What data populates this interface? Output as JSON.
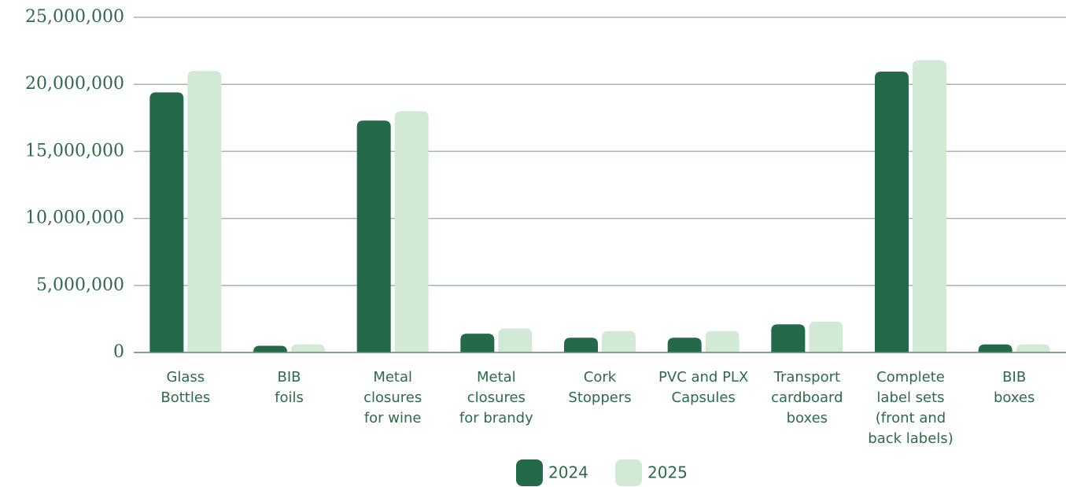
{
  "chart_data": {
    "type": "bar",
    "categories": [
      [
        "Glass",
        "Bottles"
      ],
      [
        "BIB",
        "foils"
      ],
      [
        "Metal",
        "closures",
        "for wine"
      ],
      [
        "Metal",
        "closures",
        "for brandy"
      ],
      [
        "Cork",
        "Stoppers"
      ],
      [
        "PVC and PLX",
        "Capsules"
      ],
      [
        "Transport",
        "cardboard",
        "boxes"
      ],
      [
        "Complete",
        "label sets",
        "(front and",
        "back labels)"
      ],
      [
        "BIB",
        "boxes"
      ]
    ],
    "series": [
      {
        "name": "2024",
        "color": "#23694a",
        "values": [
          19400000,
          500000,
          17300000,
          1400000,
          1100000,
          1100000,
          2100000,
          20950000,
          600000
        ]
      },
      {
        "name": "2025",
        "color": "#d2e9d5",
        "values": [
          21000000,
          600000,
          18000000,
          1800000,
          1600000,
          1600000,
          2300000,
          21800000,
          600000
        ]
      }
    ],
    "ylim": [
      0,
      25000000
    ],
    "yticks": [
      0,
      {
        "value": 5000000,
        "label": "5,000,000"
      },
      {
        "value": 10000000,
        "label": "10,000,000"
      },
      {
        "value": 15000000,
        "label": "15,000,000"
      },
      {
        "value": 20000000,
        "label": "20,000,000"
      },
      {
        "value": 25000000,
        "label": "25,000,000"
      }
    ],
    "grid": true,
    "legend": "bottom"
  }
}
